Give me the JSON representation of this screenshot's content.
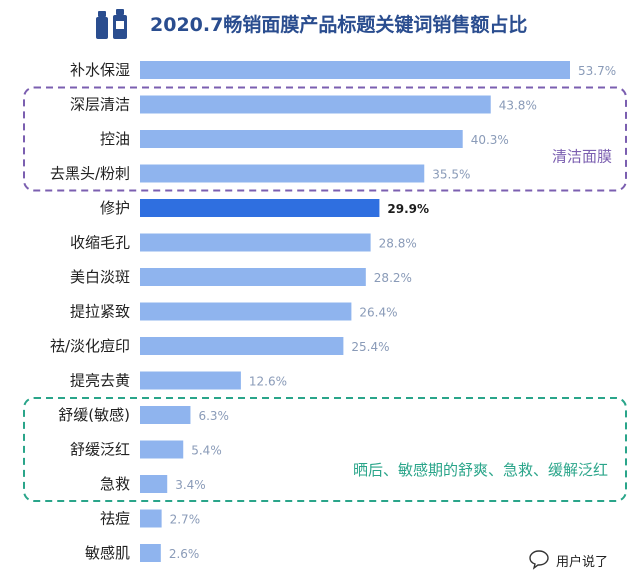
{
  "header": {
    "title": "2020.7畅销面膜产品标题关键词销售额占比"
  },
  "footer": {
    "brand": "用户说了"
  },
  "colors": {
    "bar": "#8fb4ee",
    "bar_highlight": "#2f6fe0",
    "group1": "#7b5fb0",
    "group2": "#2aa58a"
  },
  "chart_data": {
    "type": "bar",
    "orientation": "horizontal",
    "title": "2020.7畅销面膜产品标题关键词销售额占比",
    "categories": [
      "补水保湿",
      "深层清洁",
      "控油",
      "去黑头/粉刺",
      "修护",
      "收缩毛孔",
      "美白淡斑",
      "提拉紧致",
      "祛/淡化痘印",
      "提亮去黄",
      "舒缓(敏感)",
      "舒缓泛红",
      "急救",
      "祛痘",
      "敏感肌"
    ],
    "values": [
      53.7,
      43.8,
      40.3,
      35.5,
      29.9,
      28.8,
      28.2,
      26.4,
      25.4,
      12.6,
      6.3,
      5.4,
      3.4,
      2.7,
      2.6
    ],
    "value_labels": [
      "53.7%",
      "43.8%",
      "40.3%",
      "35.5%",
      "29.9%",
      "28.8%",
      "28.2%",
      "26.4%",
      "25.4%",
      "12.6%",
      "6.3%",
      "5.4%",
      "3.4%",
      "2.7%",
      "2.6%"
    ],
    "highlight_index": 4,
    "xlim": [
      0,
      60
    ],
    "groups": [
      {
        "label": "清洁面膜",
        "start": 1,
        "end": 3,
        "style": "dashed-purple"
      },
      {
        "label": "晒后、敏感期的舒爽、急救、缓解泛红",
        "start": 10,
        "end": 12,
        "style": "dashed-green"
      }
    ]
  }
}
